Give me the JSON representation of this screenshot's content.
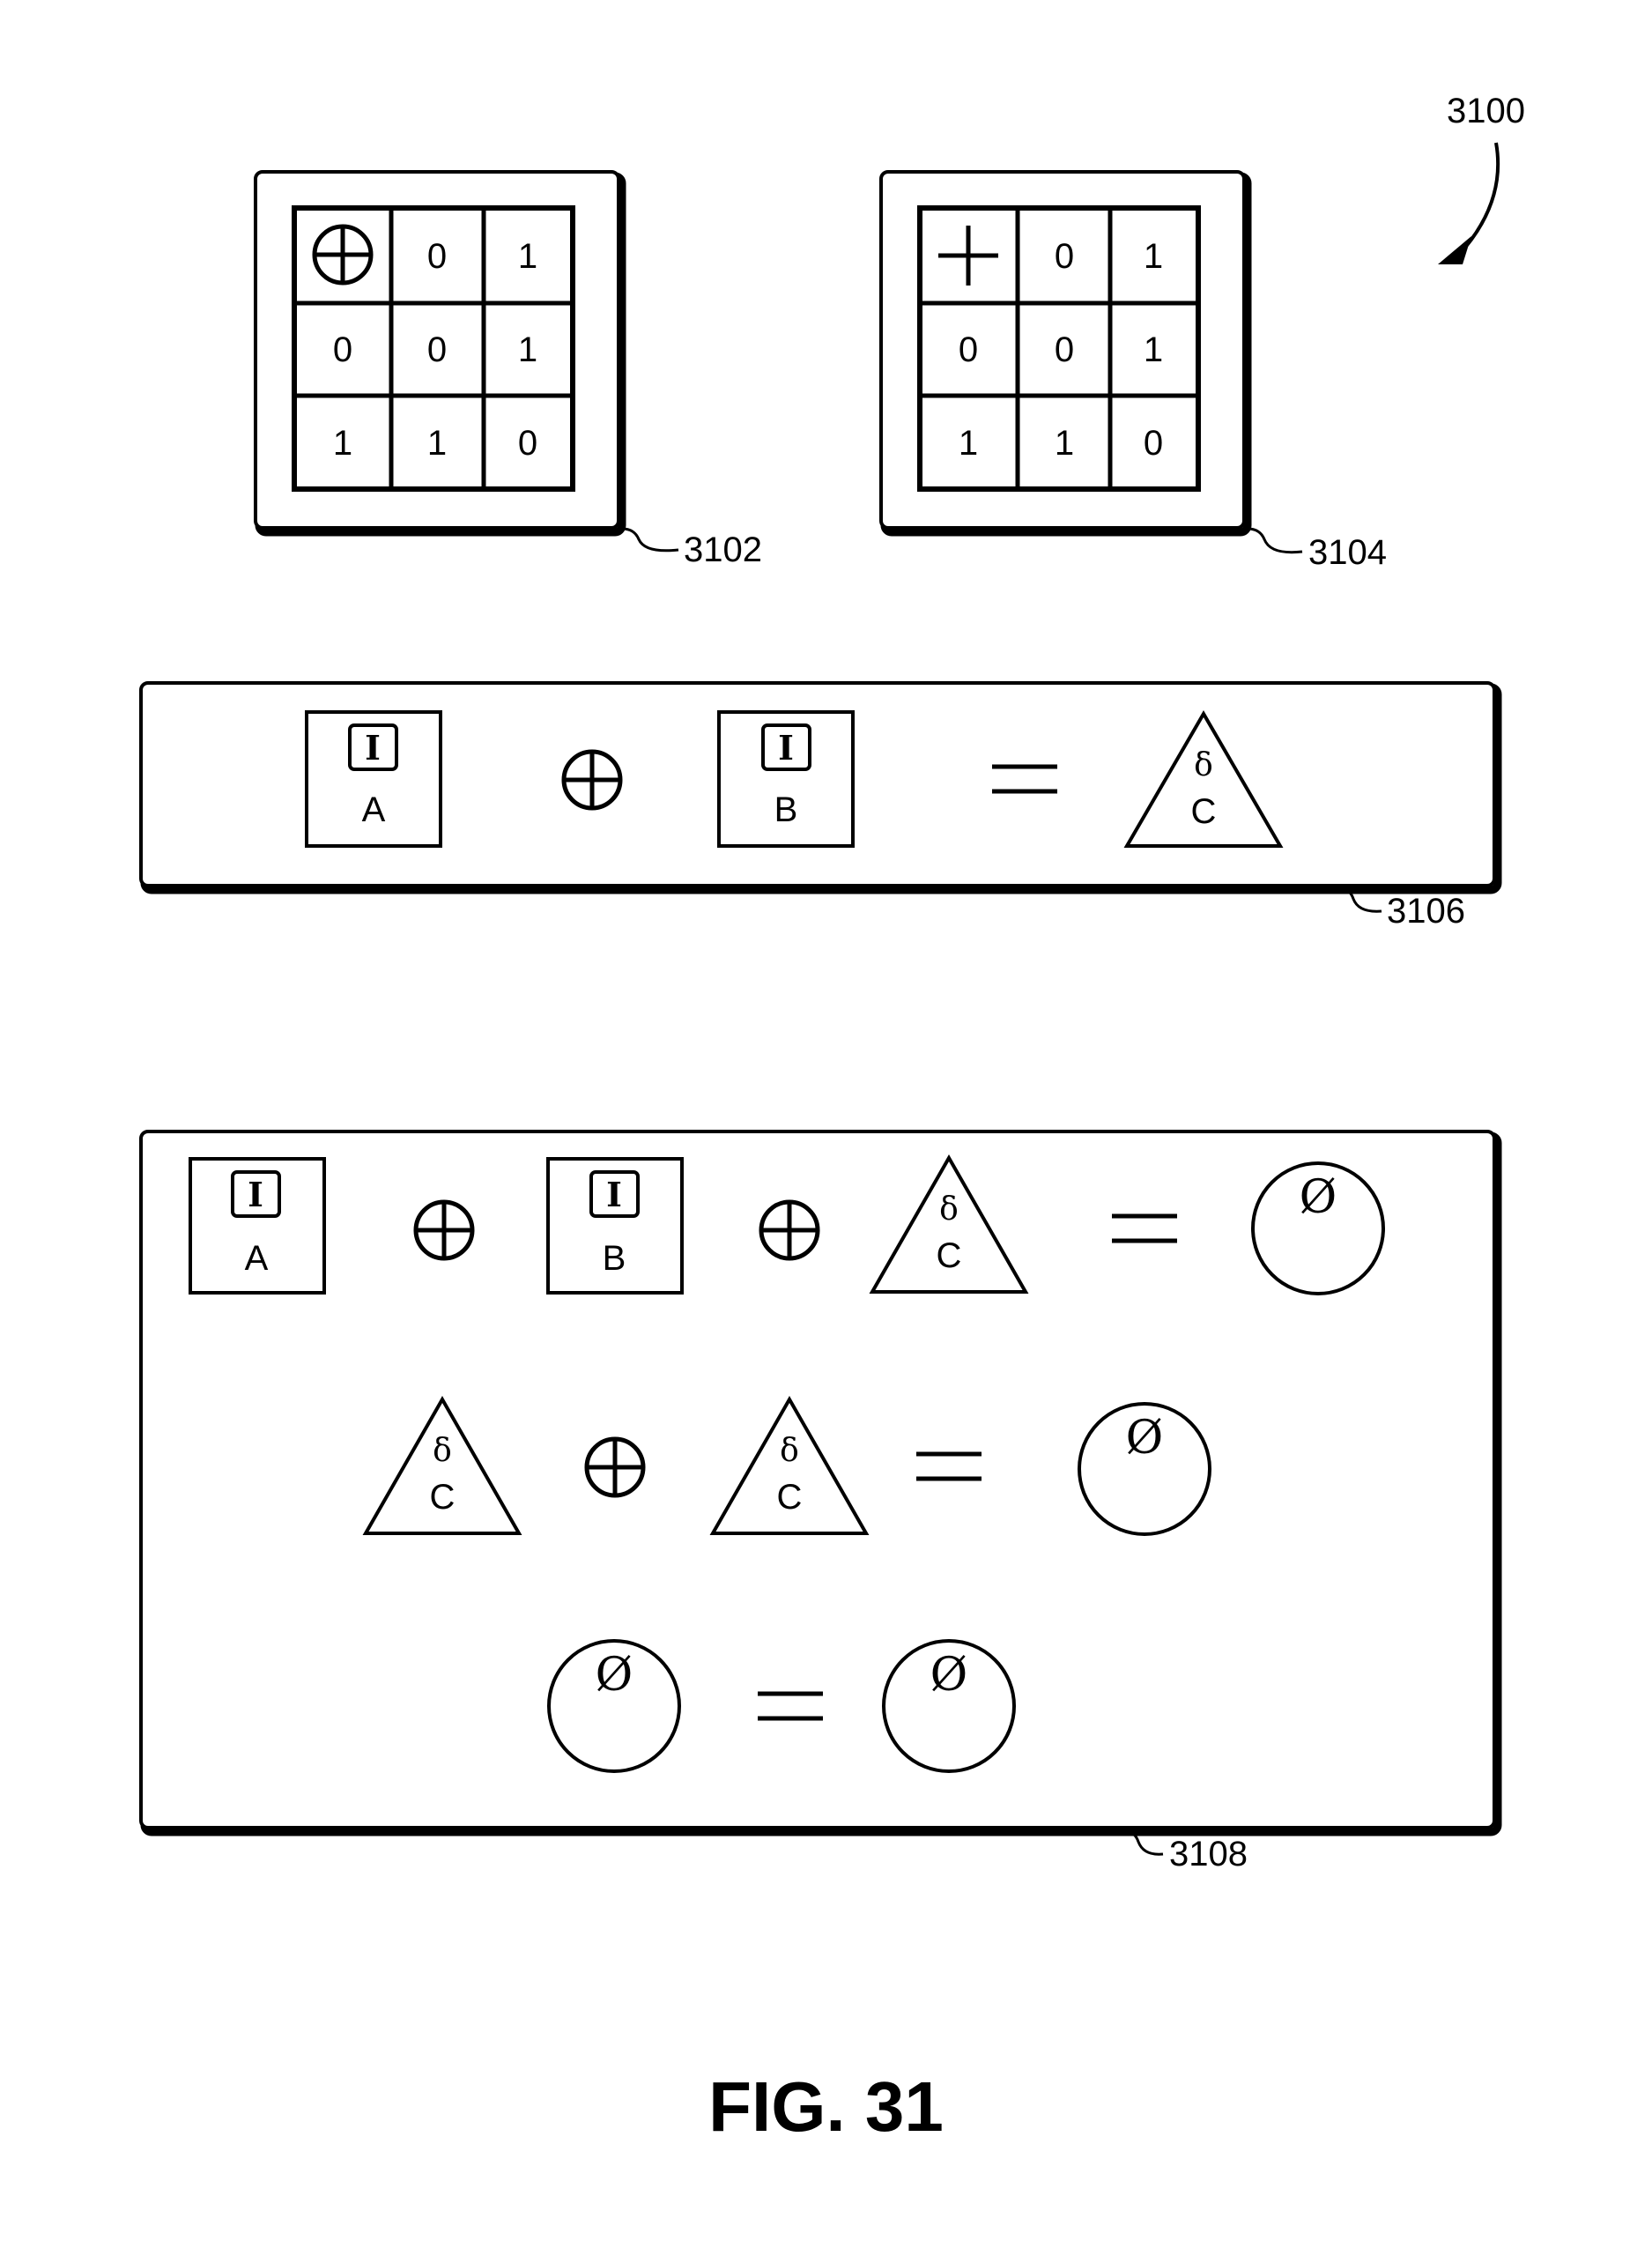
{
  "figure": {
    "ref": "3100",
    "caption": "FIG. 31"
  },
  "panels": {
    "xor_table": {
      "ref": "3102",
      "operator_symbol": "xor",
      "header_row": [
        "0",
        "1"
      ],
      "rows": [
        {
          "header": "0",
          "cells": [
            "0",
            "1"
          ]
        },
        {
          "header": "1",
          "cells": [
            "1",
            "0"
          ]
        }
      ]
    },
    "add_table": {
      "ref": "3104",
      "operator_symbol": "plus",
      "header_row": [
        "0",
        "1"
      ],
      "rows": [
        {
          "header": "0",
          "cells": [
            "0",
            "1"
          ]
        },
        {
          "header": "1",
          "cells": [
            "1",
            "0"
          ]
        }
      ]
    },
    "equation_panel": {
      "ref": "3106",
      "block_a": {
        "icon_text": "I",
        "label": "A"
      },
      "block_b": {
        "icon_text": "I",
        "label": "B"
      },
      "delta_c": {
        "symbol": "δ",
        "label": "C"
      }
    },
    "identity_panel": {
      "ref": "3108",
      "block_a": {
        "icon_text": "I",
        "label": "A"
      },
      "block_b": {
        "icon_text": "I",
        "label": "B"
      },
      "delta": {
        "symbol": "δ",
        "label": "C"
      },
      "empty_symbol": "Ø"
    }
  }
}
